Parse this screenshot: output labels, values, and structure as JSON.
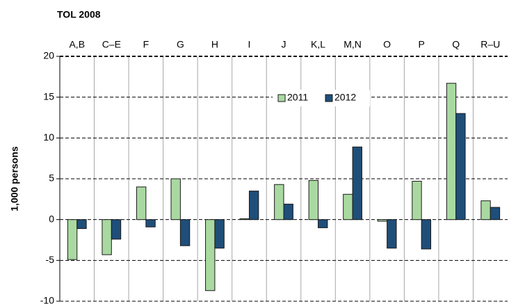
{
  "chart_data": {
    "type": "bar",
    "title": "TOL 2008",
    "ylabel": "1,000 persons",
    "categories": [
      "A,B",
      "C–E",
      "F",
      "G",
      "H",
      "I",
      "J",
      "K,L",
      "M,N",
      "O",
      "P",
      "Q",
      "R–U"
    ],
    "series": [
      {
        "name": "2011",
        "color": "#a9d9a1",
        "values": [
          -4.9,
          -4.3,
          4.0,
          5.0,
          -8.7,
          0.1,
          4.3,
          4.8,
          3.1,
          -0.2,
          4.7,
          16.7,
          2.3
        ]
      },
      {
        "name": "2012",
        "color": "#1f4e79",
        "values": [
          -1.1,
          -2.4,
          -0.9,
          -3.2,
          -3.5,
          3.5,
          1.9,
          -1.0,
          8.9,
          -3.5,
          -3.6,
          13.0,
          1.5
        ]
      }
    ],
    "ylim": [
      -10,
      20
    ],
    "yticks": [
      -10,
      -5,
      0,
      5,
      10,
      15,
      20
    ],
    "grid": true,
    "legend": "top"
  }
}
